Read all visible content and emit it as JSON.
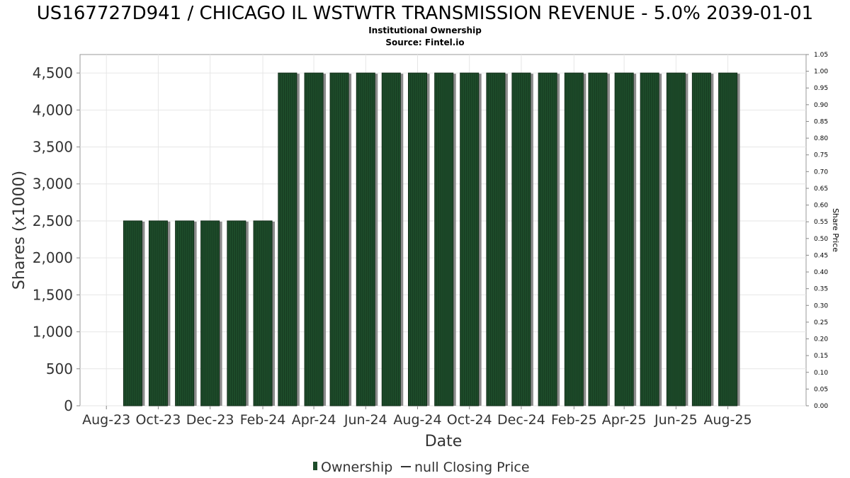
{
  "chart_data": {
    "type": "bar",
    "title": "US167727D941 / CHICAGO IL WSTWTR TRANSMISSION REVENUE - 5.0% 2039-01-01",
    "subtitle": "Institutional Ownership",
    "source": "Source: Fintel.io",
    "xlabel": "Date",
    "ylabel": "Shares (x1000)",
    "y2label": "Share Price",
    "x_ticks": [
      "Aug-23",
      "Oct-23",
      "Dec-23",
      "Feb-24",
      "Apr-24",
      "Jun-24",
      "Aug-24",
      "Oct-24",
      "Dec-24",
      "Feb-25",
      "Apr-25",
      "Jun-25",
      "Aug-25"
    ],
    "y_ticks": [
      "0",
      "500",
      "1,000",
      "1,500",
      "2,000",
      "2,500",
      "3,000",
      "3,500",
      "4,000",
      "4,500"
    ],
    "y2_ticks": [
      "0.00",
      "0.05",
      "0.10",
      "0.15",
      "0.20",
      "0.25",
      "0.30",
      "0.35",
      "0.40",
      "0.45",
      "0.50",
      "0.55",
      "0.60",
      "0.65",
      "0.70",
      "0.75",
      "0.80",
      "0.85",
      "0.90",
      "0.95",
      "1.00",
      "1.05"
    ],
    "ylim": [
      0,
      4750
    ],
    "y2lim": [
      0,
      1.05
    ],
    "grid": true,
    "legend_position": "bottom",
    "series": [
      {
        "name": "Ownership",
        "color": "#1e4d2b",
        "x": [
          "2023-09-01",
          "2023-10-01",
          "2023-11-01",
          "2023-12-01",
          "2024-01-01",
          "2024-02-01",
          "2024-03-01",
          "2024-04-01",
          "2024-05-01",
          "2024-06-01",
          "2024-07-01",
          "2024-08-01",
          "2024-09-01",
          "2024-10-01",
          "2024-11-01",
          "2024-12-01",
          "2025-01-01",
          "2025-02-01",
          "2025-03-01",
          "2025-04-01",
          "2025-05-01",
          "2025-06-01",
          "2025-07-01",
          "2025-08-01"
        ],
        "values": [
          2500,
          2500,
          2500,
          2500,
          2500,
          2500,
          4500,
          4500,
          4500,
          4500,
          4500,
          4500,
          4500,
          4500,
          4500,
          4500,
          4500,
          4500,
          4500,
          4500,
          4500,
          4500,
          4500,
          4500
        ]
      }
    ],
    "legend": {
      "ownership_label": "Ownership",
      "price_label": "null Closing Price"
    }
  }
}
